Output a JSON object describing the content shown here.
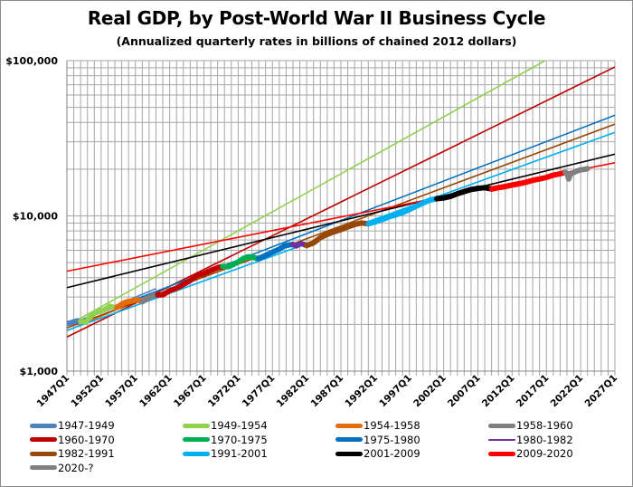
{
  "chart_data": {
    "type": "line",
    "title": "Real GDP, by Post-World War II Business Cycle",
    "subtitle": "(Annualized quarterly rates in billions of chained 2012 dollars)",
    "xlabel": "",
    "ylabel": "",
    "yscale": "log",
    "ylim": [
      1000,
      100000
    ],
    "xlim": [
      1947,
      2027
    ],
    "grid": true,
    "legend_position": "bottom",
    "y_ticks": [
      {
        "value": 100000,
        "label": "$100,000"
      },
      {
        "value": 10000,
        "label": "$10,000"
      },
      {
        "value": 1000,
        "label": "$1,000"
      }
    ],
    "x_ticks": [
      {
        "value": 1947,
        "label": "1947Q1"
      },
      {
        "value": 1952,
        "label": "1952Q1"
      },
      {
        "value": 1957,
        "label": "1957Q1"
      },
      {
        "value": 1962,
        "label": "1962Q1"
      },
      {
        "value": 1967,
        "label": "1967Q1"
      },
      {
        "value": 1972,
        "label": "1972Q1"
      },
      {
        "value": 1977,
        "label": "1977Q1"
      },
      {
        "value": 1982,
        "label": "1982Q1"
      },
      {
        "value": 1987,
        "label": "1987Q1"
      },
      {
        "value": 1992,
        "label": "1992Q1"
      },
      {
        "value": 1997,
        "label": "1997Q1"
      },
      {
        "value": 2002,
        "label": "2002Q1"
      },
      {
        "value": 2007,
        "label": "2007Q1"
      },
      {
        "value": 2012,
        "label": "2012Q1"
      },
      {
        "value": 2017,
        "label": "2017Q1"
      },
      {
        "value": 2022,
        "label": "2022Q1"
      },
      {
        "value": 2027,
        "label": "2027Q1"
      }
    ],
    "series": [
      {
        "name": "1947-1949",
        "color": "#4f81bd",
        "actual": [
          [
            1947.0,
            2030
          ],
          [
            1947.5,
            2040
          ],
          [
            1948.0,
            2080
          ],
          [
            1948.5,
            2110
          ],
          [
            1949.0,
            2090
          ]
        ],
        "trend": [
          [
            1947.0,
            1960
          ],
          [
            1960.0,
            3400
          ]
        ]
      },
      {
        "name": "1949-1954",
        "color": "#92d050",
        "actual": [
          [
            1949.0,
            2090
          ],
          [
            1949.75,
            2080
          ],
          [
            1950.5,
            2250
          ],
          [
            1951.0,
            2370
          ],
          [
            1951.75,
            2430
          ],
          [
            1952.5,
            2490
          ],
          [
            1953.25,
            2620
          ],
          [
            1953.75,
            2580
          ],
          [
            1954.25,
            2560
          ]
        ],
        "trend": [
          [
            1947.0,
            1960
          ],
          [
            2016.8,
            100000
          ]
        ]
      },
      {
        "name": "1954-1958",
        "color": "#e46c0a",
        "actual": [
          [
            1954.25,
            2560
          ],
          [
            1955.0,
            2700
          ],
          [
            1955.75,
            2800
          ],
          [
            1956.5,
            2830
          ],
          [
            1957.25,
            2880
          ],
          [
            1958.0,
            2800
          ]
        ],
        "trend": [
          [
            1947.0,
            1820
          ],
          [
            1960.0,
            3200
          ]
        ]
      },
      {
        "name": "1958-1960",
        "color": "#7f7f7f",
        "actual": [
          [
            1958.0,
            2800
          ],
          [
            1958.75,
            2930
          ],
          [
            1959.5,
            3060
          ],
          [
            1960.25,
            3100
          ]
        ],
        "trend": []
      },
      {
        "name": "1960-1970",
        "color": "#c00000",
        "actual": [
          [
            1960.25,
            3100
          ],
          [
            1961.0,
            3100
          ],
          [
            1962.0,
            3300
          ],
          [
            1963.0,
            3420
          ],
          [
            1964.0,
            3620
          ],
          [
            1965.0,
            3830
          ],
          [
            1966.0,
            4130
          ],
          [
            1967.0,
            4250
          ],
          [
            1968.0,
            4450
          ],
          [
            1969.0,
            4640
          ],
          [
            1969.75,
            4720
          ]
        ],
        "trend": [
          [
            1947.0,
            1660
          ],
          [
            2027.0,
            91000
          ]
        ]
      },
      {
        "name": "1970-1975",
        "color": "#00b050",
        "actual": [
          [
            1969.75,
            4720
          ],
          [
            1970.5,
            4700
          ],
          [
            1971.25,
            4850
          ],
          [
            1972.0,
            5050
          ],
          [
            1972.75,
            5320
          ],
          [
            1973.5,
            5460
          ],
          [
            1974.25,
            5400
          ],
          [
            1975.0,
            5300
          ]
        ],
        "trend": []
      },
      {
        "name": "1975-1980",
        "color": "#0070c0",
        "actual": [
          [
            1975.0,
            5300
          ],
          [
            1975.75,
            5500
          ],
          [
            1976.5,
            5700
          ],
          [
            1977.25,
            5900
          ],
          [
            1978.0,
            6100
          ],
          [
            1978.75,
            6400
          ],
          [
            1979.5,
            6520
          ],
          [
            1980.0,
            6540
          ]
        ],
        "trend": [
          [
            1947.0,
            1960
          ],
          [
            2027.0,
            44500
          ]
        ]
      },
      {
        "name": "1980-1982",
        "color": "#7030a0",
        "actual": [
          [
            1980.0,
            6540
          ],
          [
            1980.5,
            6400
          ],
          [
            1981.0,
            6620
          ],
          [
            1981.5,
            6580
          ],
          [
            1982.0,
            6450
          ]
        ],
        "trend": []
      },
      {
        "name": "1982-1991",
        "color": "#974706",
        "actual": [
          [
            1982.0,
            6450
          ],
          [
            1983.0,
            6700
          ],
          [
            1984.0,
            7250
          ],
          [
            1985.0,
            7600
          ],
          [
            1986.0,
            7900
          ],
          [
            1987.0,
            8150
          ],
          [
            1988.0,
            8500
          ],
          [
            1989.0,
            8800
          ],
          [
            1990.0,
            9000
          ],
          [
            1991.0,
            8900
          ]
        ],
        "trend": [
          [
            1947.0,
            1900
          ],
          [
            2027.0,
            39000
          ]
        ]
      },
      {
        "name": "1991-2001",
        "color": "#00b0f0",
        "actual": [
          [
            1991.0,
            8900
          ],
          [
            1992.0,
            9150
          ],
          [
            1993.0,
            9450
          ],
          [
            1994.0,
            9850
          ],
          [
            1995.0,
            10150
          ],
          [
            1996.0,
            10500
          ],
          [
            1997.0,
            11000
          ],
          [
            1998.0,
            11550
          ],
          [
            1999.0,
            12100
          ],
          [
            2000.0,
            12650
          ],
          [
            2001.0,
            12900
          ]
        ],
        "trend": [
          [
            1947.0,
            1830
          ],
          [
            2027.0,
            34500
          ]
        ]
      },
      {
        "name": "2001-2009",
        "color": "#000000",
        "actual": [
          [
            2001.0,
            12900
          ],
          [
            2002.0,
            13050
          ],
          [
            2003.0,
            13350
          ],
          [
            2004.0,
            13900
          ],
          [
            2005.0,
            14350
          ],
          [
            2006.0,
            14800
          ],
          [
            2007.0,
            15050
          ],
          [
            2008.0,
            15200
          ],
          [
            2009.0,
            14900
          ]
        ],
        "trend": [
          [
            1947.0,
            3450
          ],
          [
            2027.0,
            25000
          ]
        ]
      },
      {
        "name": "2009-2020",
        "color": "#ff0000",
        "actual": [
          [
            2009.0,
            14900
          ],
          [
            2010.0,
            15200
          ],
          [
            2011.0,
            15450
          ],
          [
            2012.0,
            15800
          ],
          [
            2013.0,
            16100
          ],
          [
            2014.0,
            16450
          ],
          [
            2015.0,
            16950
          ],
          [
            2016.0,
            17300
          ],
          [
            2017.0,
            17700
          ],
          [
            2018.0,
            18300
          ],
          [
            2019.0,
            18700
          ],
          [
            2019.75,
            19050
          ]
        ],
        "trend": [
          [
            1947.0,
            4400
          ],
          [
            2027.0,
            22000
          ]
        ]
      },
      {
        "name": "2020-?",
        "color": "#808080",
        "actual": [
          [
            2019.75,
            19050
          ],
          [
            2020.0,
            18800
          ],
          [
            2020.25,
            17300
          ],
          [
            2020.5,
            18550
          ],
          [
            2021.0,
            19050
          ],
          [
            2021.5,
            19500
          ],
          [
            2022.0,
            19800
          ],
          [
            2022.5,
            19900
          ],
          [
            2023.0,
            20150
          ]
        ],
        "trend": []
      }
    ]
  },
  "legend": {
    "items": [
      {
        "label": "1947-1949",
        "color": "#4f81bd"
      },
      {
        "label": "1949-1954",
        "color": "#92d050"
      },
      {
        "label": "1954-1958",
        "color": "#e46c0a"
      },
      {
        "label": "1958-1960",
        "color": "#7f7f7f"
      },
      {
        "label": "1960-1970",
        "color": "#c00000"
      },
      {
        "label": "1970-1975",
        "color": "#00b050"
      },
      {
        "label": "1975-1980",
        "color": "#0070c0"
      },
      {
        "label": "1980-1982",
        "color": "#7030a0"
      },
      {
        "label": "1982-1991",
        "color": "#974706"
      },
      {
        "label": "1991-2001",
        "color": "#00b0f0"
      },
      {
        "label": "2001-2009",
        "color": "#000000"
      },
      {
        "label": "2009-2020",
        "color": "#ff0000"
      },
      {
        "label": "2020-?",
        "color": "#808080"
      }
    ]
  },
  "colors": {
    "gridline": "#a6a6a6",
    "axis": "#868686",
    "border": "#8c8c8c"
  }
}
